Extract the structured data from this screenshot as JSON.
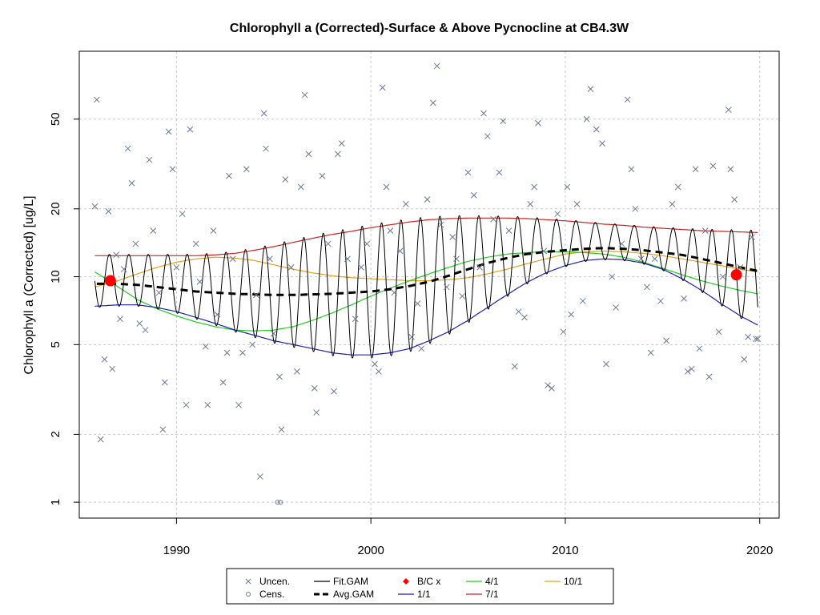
{
  "chart_data": {
    "type": "scatter",
    "title": "Chlorophyll a (Corrected)-Surface & Above Pycnocline at CB4.3W",
    "ylabel": "Chlorophyll a (Corrected) [ug/L]",
    "xlabel": "",
    "xlim": [
      1985,
      2021
    ],
    "ylim_log": [
      0.85,
      100
    ],
    "y_scale": "log",
    "grid": true,
    "x_ticks": [
      1990,
      2000,
      2010,
      2020
    ],
    "x_tick_labels": [
      "1990",
      "2000",
      "2010",
      "2020"
    ],
    "y_ticks": [
      1,
      2,
      5,
      10,
      20,
      50
    ],
    "y_tick_labels": [
      "1",
      "2",
      "5",
      "10",
      "20",
      "50"
    ],
    "legend": {
      "placement": "bottom-center",
      "entries": [
        {
          "label": "Uncen.",
          "symbol": "x",
          "color": "#6b7890"
        },
        {
          "label": "Cens.",
          "symbol": "circle-open",
          "color": "#6b7890"
        },
        {
          "label": "Fit.GAM",
          "symbol": "line",
          "color": "#000000"
        },
        {
          "label": "Avg.GAM",
          "symbol": "dash-thick",
          "color": "#000000"
        },
        {
          "label": "B/C x",
          "symbol": "diamond",
          "color": "#ff0000"
        },
        {
          "label": "1/1",
          "symbol": "line",
          "color": "#1f1fb4"
        },
        {
          "label": "4/1",
          "symbol": "line",
          "color": "#22cc22"
        },
        {
          "label": "7/1",
          "symbol": "line",
          "color": "#cc2222"
        },
        {
          "label": "10/1",
          "symbol": "line",
          "color": "#e5a020"
        }
      ]
    },
    "colors": {
      "points": "#6b7890",
      "fit": "#000000",
      "avg": "#000000",
      "bc": "#ff0000",
      "jan": "#1f1fb4",
      "apr": "#22cc22",
      "jul": "#cc2222",
      "oct": "#e5a020",
      "grid": "#c8c8c8"
    },
    "bc_points": [
      {
        "x": 1986.6,
        "y": 9.6
      },
      {
        "x": 2018.8,
        "y": 10.2
      }
    ],
    "avg_gam": {
      "x": [
        1985.9,
        1987,
        1988,
        1989,
        1990,
        1991,
        1992,
        1993,
        1994,
        1995,
        1996,
        1997,
        1998,
        1999,
        2000,
        2001,
        2002,
        2003,
        2004,
        2005,
        2006,
        2007,
        2008,
        2009,
        2010,
        2011,
        2012,
        2013,
        2014,
        2015,
        2016,
        2017,
        2018,
        2019,
        2019.9
      ],
      "y": [
        9.3,
        9.3,
        9.2,
        9.0,
        8.8,
        8.6,
        8.5,
        8.4,
        8.35,
        8.3,
        8.3,
        8.35,
        8.4,
        8.5,
        8.6,
        8.8,
        9.1,
        9.5,
        10.1,
        10.8,
        11.5,
        12.1,
        12.6,
        12.9,
        13.1,
        13.3,
        13.4,
        13.3,
        13.1,
        12.8,
        12.5,
        12.0,
        11.5,
        11.0,
        10.6
      ]
    },
    "series_1_1": {
      "x": [
        1985.8,
        1987,
        1988,
        1989,
        1990,
        1991,
        1992,
        1993,
        1994,
        1995,
        1996,
        1997,
        1998,
        1999,
        2000,
        2001,
        2002,
        2003,
        2004,
        2005,
        2006,
        2007,
        2008,
        2009,
        2010,
        2011,
        2012,
        2013,
        2014,
        2015,
        2016,
        2017,
        2018,
        2019,
        2019.9
      ],
      "y": [
        7.4,
        7.5,
        7.5,
        7.3,
        7.0,
        6.6,
        6.2,
        5.8,
        5.5,
        5.2,
        5.0,
        4.8,
        4.6,
        4.5,
        4.5,
        4.6,
        4.8,
        5.2,
        5.7,
        6.4,
        7.3,
        8.3,
        9.4,
        10.4,
        11.2,
        11.8,
        12.0,
        11.9,
        11.5,
        10.8,
        9.8,
        8.7,
        7.6,
        6.7,
        6.1
      ]
    },
    "series_4_1": {
      "x": [
        1985.8,
        1987,
        1988,
        1989,
        1990,
        1991,
        1992,
        1993,
        1994,
        1995,
        1996,
        1997,
        1998,
        1999,
        2000,
        2001,
        2002,
        2003,
        2004,
        2005,
        2006,
        2007,
        2008,
        2009,
        2010,
        2011,
        2012,
        2013,
        2014,
        2015,
        2016,
        2017,
        2018,
        2019,
        2019.9
      ],
      "y": [
        10.5,
        9.0,
        7.9,
        7.2,
        6.7,
        6.3,
        6.0,
        5.8,
        5.75,
        5.8,
        6.0,
        6.4,
        6.9,
        7.5,
        8.2,
        8.9,
        9.6,
        10.3,
        11.0,
        11.7,
        12.2,
        12.6,
        12.8,
        12.9,
        12.9,
        12.8,
        12.6,
        12.2,
        11.6,
        10.9,
        10.2,
        9.6,
        9.1,
        8.7,
        8.4
      ]
    },
    "series_7_1": {
      "x": [
        1985.8,
        1987,
        1988,
        1989,
        1990,
        1991,
        1992,
        1993,
        1994,
        1995,
        1996,
        1997,
        1998,
        1999,
        2000,
        2001,
        2002,
        2003,
        2004,
        2005,
        2006,
        2007,
        2008,
        2009,
        2010,
        2011,
        2012,
        2013,
        2014,
        2015,
        2016,
        2017,
        2018,
        2019,
        2019.9
      ],
      "y": [
        12.4,
        12.4,
        12.4,
        12.4,
        12.4,
        12.4,
        12.5,
        12.7,
        13.1,
        13.6,
        14.2,
        14.8,
        15.4,
        15.9,
        16.5,
        17.0,
        17.5,
        17.9,
        18.1,
        18.2,
        18.2,
        18.2,
        18.1,
        17.9,
        17.7,
        17.4,
        17.1,
        16.9,
        16.6,
        16.4,
        16.2,
        16.0,
        15.9,
        15.8,
        15.7
      ]
    },
    "series_10_1": {
      "x": [
        1985.8,
        1987,
        1988,
        1989,
        1990,
        1991,
        1992,
        1993,
        1994,
        1995,
        1996,
        1997,
        1998,
        1999,
        2000,
        2001,
        2002,
        2003,
        2004,
        2005,
        2006,
        2007,
        2008,
        2009,
        2010,
        2011,
        2012,
        2013,
        2014,
        2015,
        2016,
        2017,
        2018,
        2019,
        2019.9
      ],
      "y": [
        9.0,
        9.6,
        10.3,
        11.0,
        11.6,
        12.0,
        12.2,
        12.1,
        11.8,
        11.3,
        10.8,
        10.4,
        10.1,
        9.9,
        9.8,
        9.7,
        9.6,
        9.6,
        9.7,
        9.9,
        10.3,
        10.8,
        11.4,
        12.0,
        12.6,
        12.9,
        13.0,
        12.9,
        12.7,
        12.4,
        12.0,
        11.6,
        11.2,
        10.8,
        10.5
      ]
    },
    "uncensored_points": [
      {
        "x": 1985.8,
        "y": 20.5
      },
      {
        "x": 1985.9,
        "y": 61
      },
      {
        "x": 1986.1,
        "y": 1.9
      },
      {
        "x": 1986.3,
        "y": 4.3
      },
      {
        "x": 1986.5,
        "y": 19.5
      },
      {
        "x": 1986.7,
        "y": 3.9
      },
      {
        "x": 1986.9,
        "y": 12.5
      },
      {
        "x": 1987.1,
        "y": 6.5
      },
      {
        "x": 1987.3,
        "y": 10.8
      },
      {
        "x": 1987.5,
        "y": 37
      },
      {
        "x": 1987.7,
        "y": 26
      },
      {
        "x": 1987.9,
        "y": 14
      },
      {
        "x": 1988.1,
        "y": 6.2
      },
      {
        "x": 1988.4,
        "y": 5.8
      },
      {
        "x": 1988.6,
        "y": 33
      },
      {
        "x": 1988.8,
        "y": 16
      },
      {
        "x": 1989.1,
        "y": 8.5
      },
      {
        "x": 1989.3,
        "y": 2.1
      },
      {
        "x": 1989.4,
        "y": 3.4
      },
      {
        "x": 1989.6,
        "y": 44
      },
      {
        "x": 1989.8,
        "y": 30
      },
      {
        "x": 1990.0,
        "y": 11
      },
      {
        "x": 1990.3,
        "y": 19
      },
      {
        "x": 1990.5,
        "y": 2.7
      },
      {
        "x": 1990.7,
        "y": 45
      },
      {
        "x": 1991.0,
        "y": 14
      },
      {
        "x": 1991.2,
        "y": 9.5
      },
      {
        "x": 1991.5,
        "y": 4.9
      },
      {
        "x": 1991.6,
        "y": 2.7
      },
      {
        "x": 1991.9,
        "y": 16
      },
      {
        "x": 1992.1,
        "y": 6.8
      },
      {
        "x": 1992.4,
        "y": 3.4
      },
      {
        "x": 1992.6,
        "y": 4.6
      },
      {
        "x": 1992.7,
        "y": 28
      },
      {
        "x": 1992.9,
        "y": 12
      },
      {
        "x": 1993.2,
        "y": 2.7
      },
      {
        "x": 1993.4,
        "y": 4.6
      },
      {
        "x": 1993.6,
        "y": 30
      },
      {
        "x": 1993.9,
        "y": 5.0
      },
      {
        "x": 1994.1,
        "y": 8.3
      },
      {
        "x": 1994.3,
        "y": 1.3
      },
      {
        "x": 1994.5,
        "y": 53
      },
      {
        "x": 1994.6,
        "y": 37
      },
      {
        "x": 1994.8,
        "y": 12
      },
      {
        "x": 1995.0,
        "y": 5.6
      },
      {
        "x": 1995.3,
        "y": 3.6
      },
      {
        "x": 1995.4,
        "y": 2.1
      },
      {
        "x": 1995.6,
        "y": 27
      },
      {
        "x": 1995.9,
        "y": 11
      },
      {
        "x": 1996.2,
        "y": 3.8
      },
      {
        "x": 1996.4,
        "y": 25
      },
      {
        "x": 1996.6,
        "y": 64
      },
      {
        "x": 1996.8,
        "y": 35
      },
      {
        "x": 1997.1,
        "y": 3.2
      },
      {
        "x": 1997.2,
        "y": 2.5
      },
      {
        "x": 1997.5,
        "y": 28
      },
      {
        "x": 1997.8,
        "y": 14
      },
      {
        "x": 1998.1,
        "y": 3.1
      },
      {
        "x": 1998.3,
        "y": 35
      },
      {
        "x": 1998.5,
        "y": 39
      },
      {
        "x": 1998.8,
        "y": 12
      },
      {
        "x": 1999.2,
        "y": 6.5
      },
      {
        "x": 1999.5,
        "y": 11
      },
      {
        "x": 1999.8,
        "y": 14
      },
      {
        "x": 2000.2,
        "y": 4.1
      },
      {
        "x": 2000.4,
        "y": 3.8
      },
      {
        "x": 2000.6,
        "y": 69
      },
      {
        "x": 2000.8,
        "y": 25
      },
      {
        "x": 2001.0,
        "y": 16
      },
      {
        "x": 2001.2,
        "y": 8.5
      },
      {
        "x": 2001.5,
        "y": 13
      },
      {
        "x": 2001.8,
        "y": 21
      },
      {
        "x": 2002.1,
        "y": 5.4
      },
      {
        "x": 2002.4,
        "y": 7.6
      },
      {
        "x": 2002.6,
        "y": 4.8
      },
      {
        "x": 2002.9,
        "y": 22
      },
      {
        "x": 2003.2,
        "y": 59
      },
      {
        "x": 2003.4,
        "y": 86
      },
      {
        "x": 2003.6,
        "y": 17
      },
      {
        "x": 2003.9,
        "y": 9.0
      },
      {
        "x": 2004.2,
        "y": 15
      },
      {
        "x": 2004.4,
        "y": 12
      },
      {
        "x": 2004.7,
        "y": 8.2
      },
      {
        "x": 2005.0,
        "y": 29
      },
      {
        "x": 2005.3,
        "y": 23
      },
      {
        "x": 2005.6,
        "y": 11
      },
      {
        "x": 2005.8,
        "y": 53
      },
      {
        "x": 2006.0,
        "y": 42
      },
      {
        "x": 2006.3,
        "y": 18
      },
      {
        "x": 2006.6,
        "y": 29
      },
      {
        "x": 2006.8,
        "y": 49
      },
      {
        "x": 2007.1,
        "y": 16
      },
      {
        "x": 2007.4,
        "y": 4.0
      },
      {
        "x": 2007.6,
        "y": 7.0
      },
      {
        "x": 2007.9,
        "y": 6.6
      },
      {
        "x": 2008.2,
        "y": 21
      },
      {
        "x": 2008.4,
        "y": 25
      },
      {
        "x": 2008.6,
        "y": 48
      },
      {
        "x": 2008.9,
        "y": 13
      },
      {
        "x": 2009.1,
        "y": 3.3
      },
      {
        "x": 2009.3,
        "y": 3.2
      },
      {
        "x": 2009.6,
        "y": 19
      },
      {
        "x": 2009.9,
        "y": 5.7
      },
      {
        "x": 2010.1,
        "y": 25
      },
      {
        "x": 2010.3,
        "y": 6.8
      },
      {
        "x": 2010.6,
        "y": 21
      },
      {
        "x": 2010.9,
        "y": 7.8
      },
      {
        "x": 2011.1,
        "y": 50
      },
      {
        "x": 2011.3,
        "y": 68
      },
      {
        "x": 2011.6,
        "y": 45
      },
      {
        "x": 2011.9,
        "y": 39
      },
      {
        "x": 2012.1,
        "y": 4.1
      },
      {
        "x": 2012.4,
        "y": 10
      },
      {
        "x": 2012.6,
        "y": 7.3
      },
      {
        "x": 2012.9,
        "y": 14
      },
      {
        "x": 2013.2,
        "y": 61
      },
      {
        "x": 2013.4,
        "y": 30
      },
      {
        "x": 2013.6,
        "y": 20
      },
      {
        "x": 2013.9,
        "y": 12
      },
      {
        "x": 2014.2,
        "y": 9.0
      },
      {
        "x": 2014.4,
        "y": 4.6
      },
      {
        "x": 2014.6,
        "y": 12
      },
      {
        "x": 2014.9,
        "y": 7.8
      },
      {
        "x": 2015.2,
        "y": 5.2
      },
      {
        "x": 2015.5,
        "y": 21
      },
      {
        "x": 2015.8,
        "y": 25
      },
      {
        "x": 2016.1,
        "y": 8.0
      },
      {
        "x": 2016.3,
        "y": 3.8
      },
      {
        "x": 2016.5,
        "y": 3.9
      },
      {
        "x": 2016.7,
        "y": 30
      },
      {
        "x": 2016.9,
        "y": 4.8
      },
      {
        "x": 2017.2,
        "y": 16
      },
      {
        "x": 2017.4,
        "y": 3.6
      },
      {
        "x": 2017.6,
        "y": 31
      },
      {
        "x": 2017.9,
        "y": 5.7
      },
      {
        "x": 2018.1,
        "y": 10
      },
      {
        "x": 2018.4,
        "y": 55
      },
      {
        "x": 2018.5,
        "y": 30
      },
      {
        "x": 2018.7,
        "y": 22
      },
      {
        "x": 2019.0,
        "y": 11
      },
      {
        "x": 2019.2,
        "y": 4.3
      },
      {
        "x": 2019.4,
        "y": 5.4
      },
      {
        "x": 2019.6,
        "y": 15
      },
      {
        "x": 2019.8,
        "y": 5.3
      },
      {
        "x": 2019.9,
        "y": 5.3
      }
    ],
    "censored_points": [
      {
        "x": 1995.2,
        "y": 1.0
      },
      {
        "x": 1995.35,
        "y": 1.0
      }
    ]
  }
}
